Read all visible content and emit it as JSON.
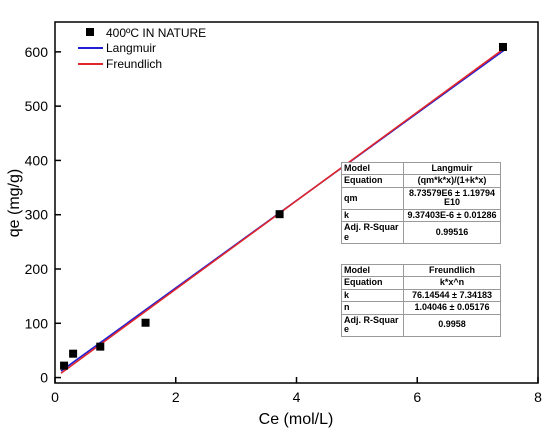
{
  "chart_data": {
    "type": "scatter",
    "xlabel": "Ce (mol/L)",
    "ylabel": "qe (mg/g)",
    "xlim": [
      0,
      8
    ],
    "ylim": [
      -10,
      655
    ],
    "x_ticks": [
      0,
      2,
      4,
      6,
      8
    ],
    "y_ticks": [
      0,
      100,
      200,
      300,
      400,
      500,
      600
    ],
    "grid": false,
    "legend_position": "top-left",
    "series": [
      {
        "name": "400ºC IN NATURE",
        "kind": "scatter",
        "marker": "square",
        "color": "#000000",
        "x": [
          0.15,
          0.3,
          0.75,
          1.5,
          3.72,
          7.42
        ],
        "y": [
          22,
          44,
          57,
          101,
          301,
          609
        ]
      },
      {
        "name": "Langmuir",
        "kind": "line",
        "color": "#1f1fd6",
        "x": [
          0.1,
          7.45
        ],
        "y": [
          12,
          604
        ]
      },
      {
        "name": "Freundlich",
        "kind": "line",
        "color": "#e0262b",
        "x": [
          0.1,
          7.45
        ],
        "y": [
          8,
          607
        ]
      }
    ],
    "fit_tables": [
      {
        "rows": [
          [
            "Model",
            "Langmuir"
          ],
          [
            "Equation",
            "(qm*k*x)/(1+k*x)"
          ],
          [
            "qm",
            "8.73579E6 ± 1.19794E10"
          ],
          [
            "k",
            "9.37403E-6 ± 0.01286"
          ],
          [
            "Adj. R-Square",
            "0.99516"
          ]
        ]
      },
      {
        "rows": [
          [
            "Model",
            "Freundlich"
          ],
          [
            "Equation",
            "k*x^n"
          ],
          [
            "k",
            "76.14544 ± 7.34183"
          ],
          [
            "n",
            "1.04046 ± 0.05176"
          ],
          [
            "Adj. R-Square",
            "0.9958"
          ]
        ]
      }
    ]
  }
}
